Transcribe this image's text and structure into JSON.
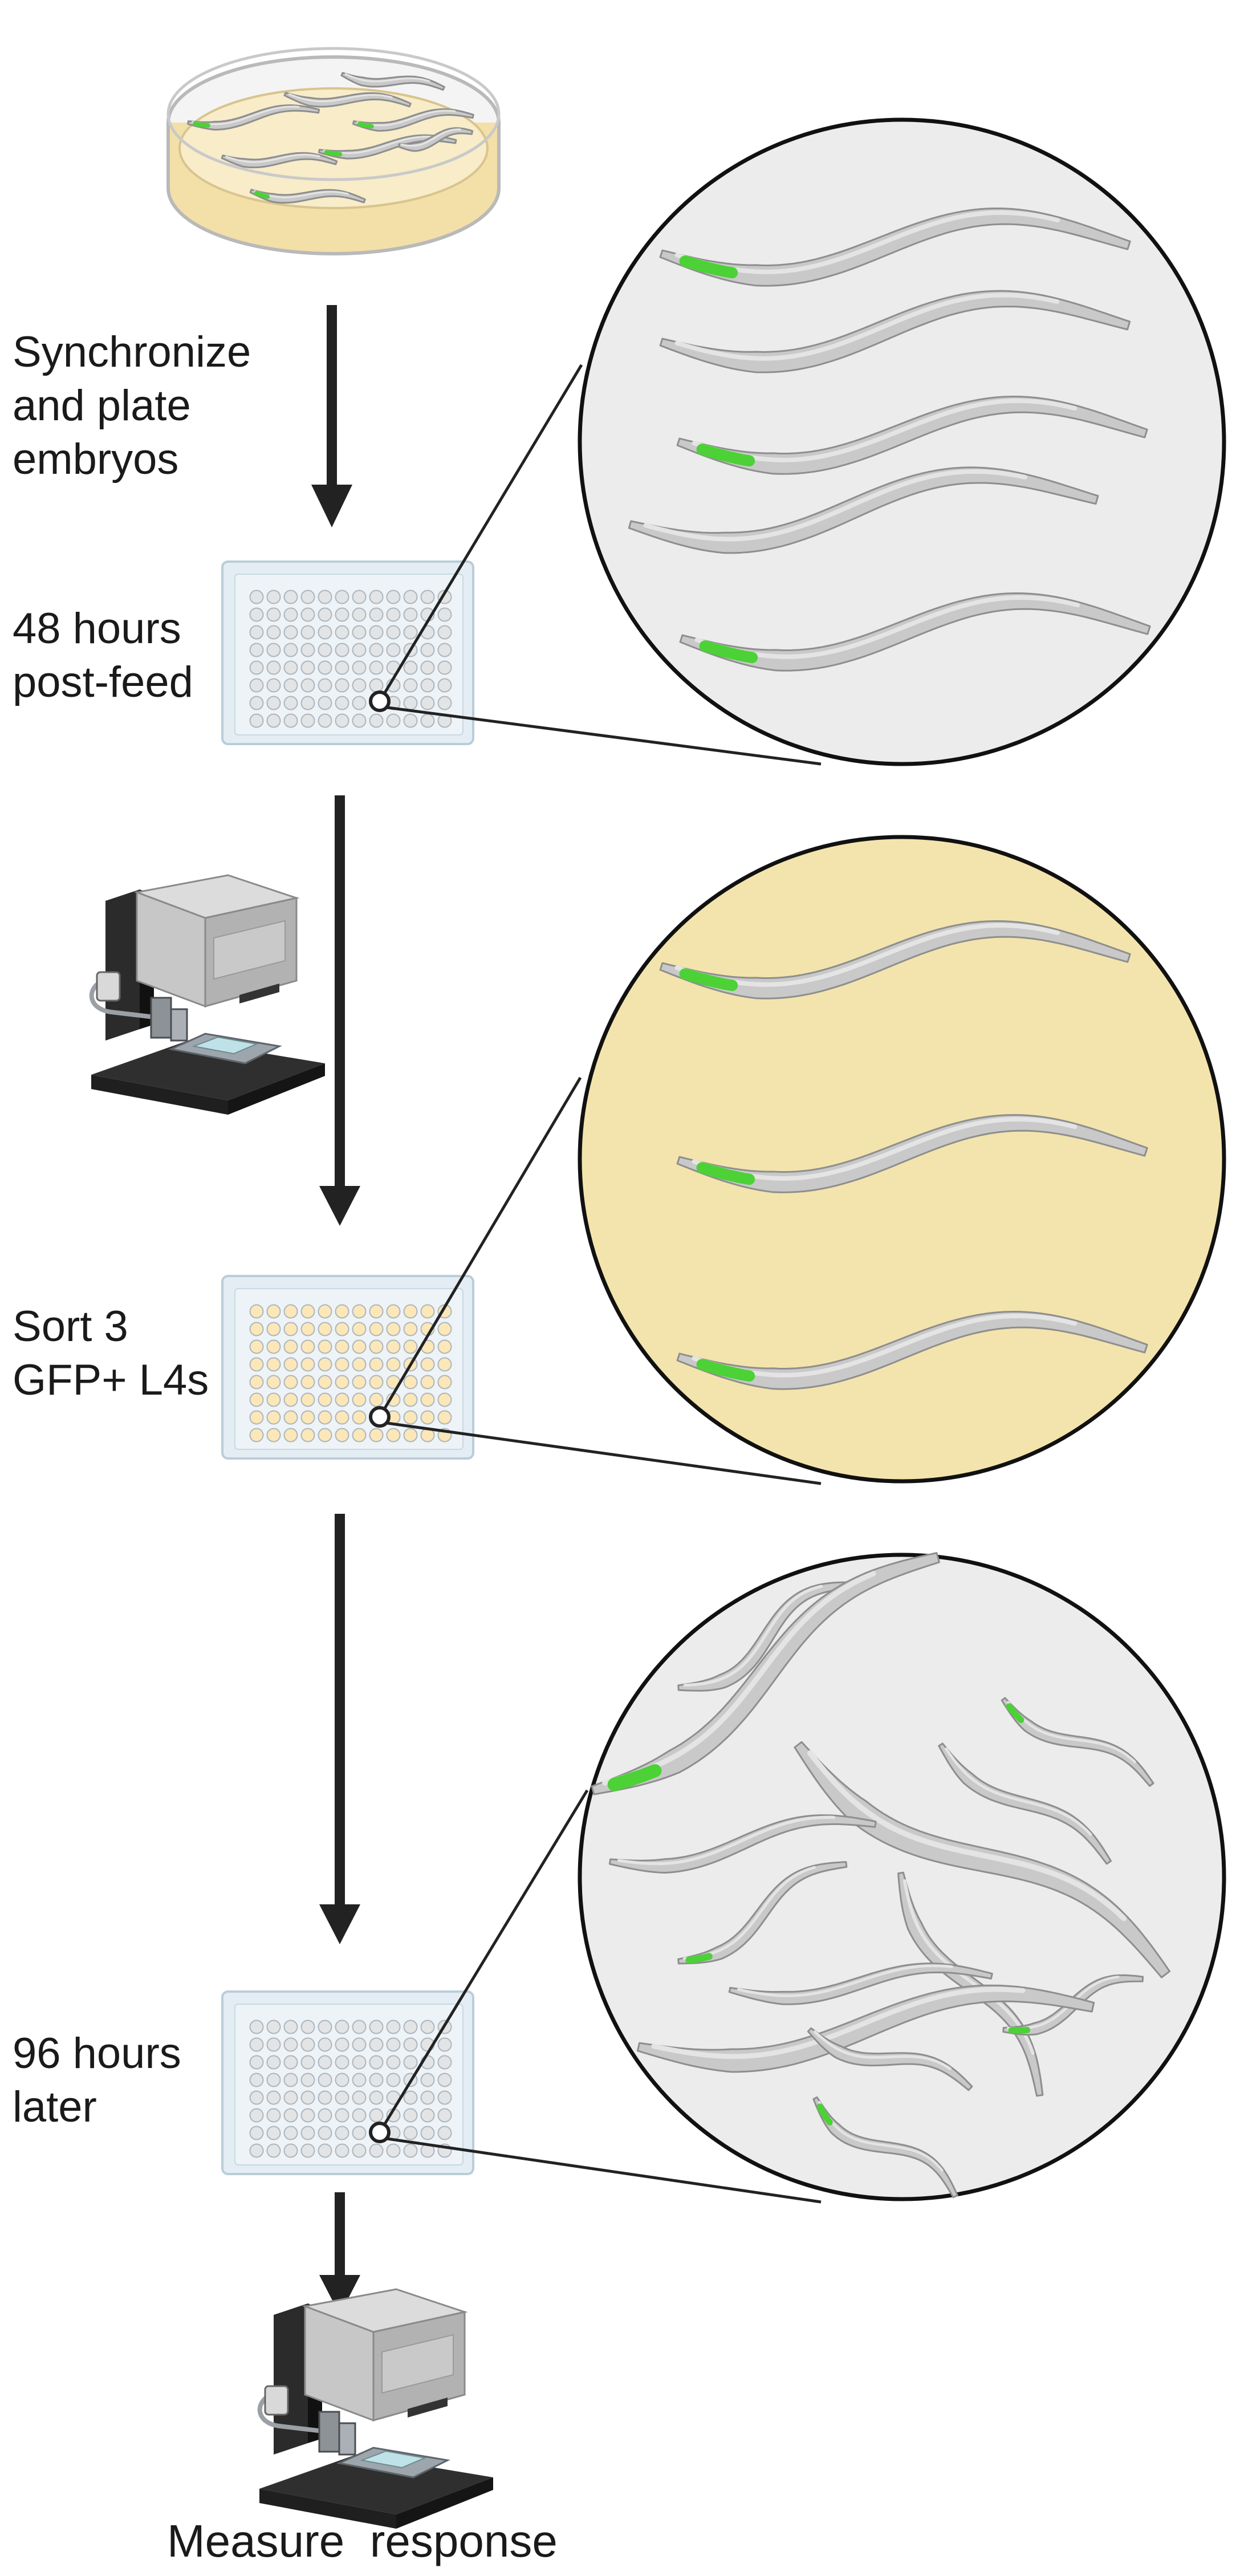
{
  "labels": {
    "step1": "Synchronize\nand plate\nembryos",
    "step2": "48 hours\npost-feed",
    "step3": "Sort 3\nGFP+ L4s",
    "step4": "96 hours\nlater",
    "final": "Measure  response"
  },
  "colors": {
    "arrow": "#222222",
    "worm_body": "#c9c9c9",
    "worm_outline": "#8e8e8e",
    "gfp": "#4cd137",
    "circle_gray": "#ececec",
    "circle_yellow": "#f3e4ad",
    "plate_frame": "#e3edf3",
    "well_empty": "#e2e4e6",
    "well_yellow": "#fbe7b8",
    "dish_agar": "#f8ecc9"
  },
  "icons": {
    "dish": "petri-dish-icon",
    "plate": "96-well-plate-icon",
    "sorter": "worm-sorter-instrument-icon",
    "worm": "c-elegans-worm-icon"
  }
}
